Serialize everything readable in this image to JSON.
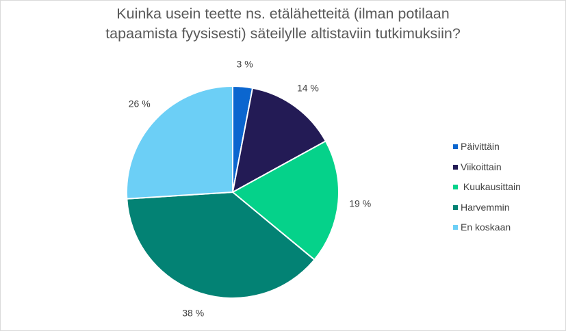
{
  "chart_data": {
    "type": "pie",
    "title_lines": [
      "Kuinka usein teette ns. etälähetteitä (ilman potilaan",
      "tapaamista fyysisesti) säteilylle altistaviin tutkimuksiin?"
    ],
    "slices": [
      {
        "label": "Päivittäin",
        "value": 3,
        "value_label": "3 %",
        "color": "#0b66cf"
      },
      {
        "label": "Viikoittain",
        "value": 14,
        "value_label": "14 %",
        "color": "#231b55"
      },
      {
        "label": " Kuukausittain",
        "value": 19,
        "value_label": "19 %",
        "color": "#05d28a"
      },
      {
        "label": "Harvemmin",
        "value": 38,
        "value_label": "38 %",
        "color": "#038274"
      },
      {
        "label": "En koskaan",
        "value": 26,
        "value_label": "26 %",
        "color": "#6ccff6"
      }
    ],
    "start_angle_deg": 0,
    "direction": "clockwise",
    "legend_position": "right"
  }
}
